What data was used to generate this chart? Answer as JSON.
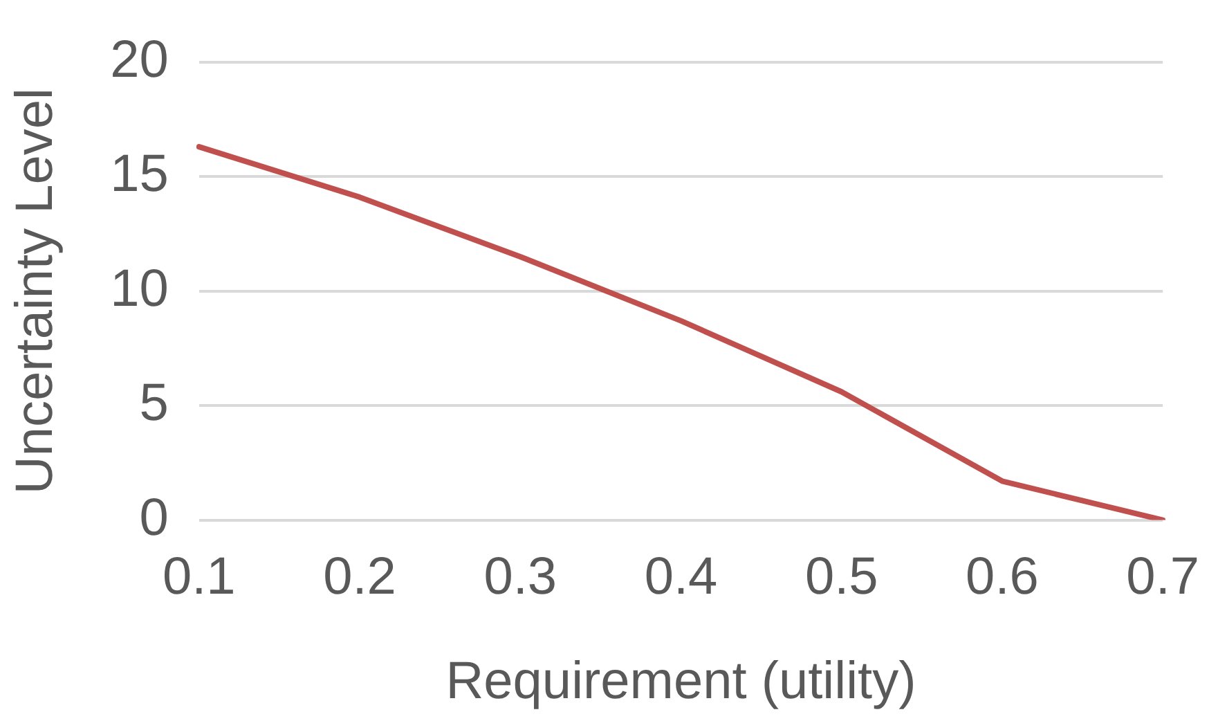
{
  "chart_data": {
    "type": "line",
    "xlabel": "Requirement (utility)",
    "ylabel": "Uncertainty Level",
    "categories": [
      "0.1",
      "0.2",
      "0.3",
      "0.4",
      "0.5",
      "0.6",
      "0.7"
    ],
    "series": [
      {
        "color": "#c0504d",
        "values": [
          16.3,
          14.1,
          11.5,
          8.7,
          5.6,
          1.7,
          0
        ]
      }
    ],
    "ylim": [
      0,
      20
    ],
    "yticks": [
      0,
      5,
      10,
      15,
      20
    ],
    "grid": "y",
    "legend": false,
    "marker": "none",
    "line_style": "solid"
  }
}
